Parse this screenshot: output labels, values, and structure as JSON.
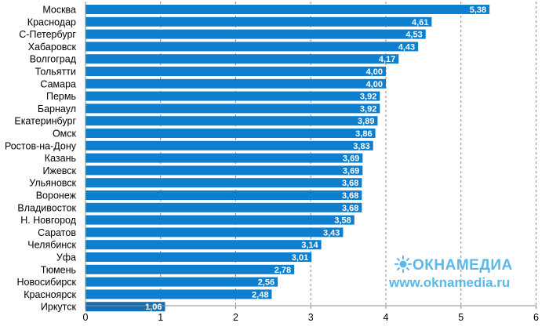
{
  "chart_data": {
    "type": "bar",
    "orientation": "horizontal",
    "categories": [
      "Москва",
      "Краснодар",
      "С-Петербург",
      "Хабаровск",
      "Волгоград",
      "Тольятти",
      "Самара",
      "Пермь",
      "Барнаул",
      "Екатеринбург",
      "Омск",
      "Ростов-на-Дону",
      "Казань",
      "Ижевск",
      "Ульяновск",
      "Воронеж",
      "Владивосток",
      "Н. Новгород",
      "Саратов",
      "Челябинск",
      "Уфа",
      "Тюмень",
      "Новосибирск",
      "Красноярск",
      "Иркутск"
    ],
    "values": [
      5.38,
      4.61,
      4.53,
      4.43,
      4.17,
      4.0,
      4.0,
      3.92,
      3.92,
      3.89,
      3.86,
      3.83,
      3.69,
      3.69,
      3.68,
      3.68,
      3.68,
      3.58,
      3.43,
      3.14,
      3.01,
      2.78,
      2.56,
      2.48,
      1.06
    ],
    "value_labels": [
      "5,38",
      "4,61",
      "4,53",
      "4,43",
      "4,17",
      "4,00",
      "4,00",
      "3,92",
      "3,92",
      "3,89",
      "3,86",
      "3,83",
      "3,69",
      "3,69",
      "3,68",
      "3,68",
      "3,68",
      "3,58",
      "3,43",
      "3,14",
      "3,01",
      "2,78",
      "2,56",
      "2,48",
      "1,06"
    ],
    "xlim": [
      0,
      6
    ],
    "xticks": [
      "0",
      "1",
      "2",
      "3",
      "4",
      "5",
      "6"
    ],
    "grid": "vertical dashed",
    "colors": {
      "bar": "#0d7fce",
      "bar_last": "#1170b8",
      "grid": "#8c8c8c",
      "value_text": "#ffffff"
    }
  },
  "watermark": {
    "brand": "ОКНАМЕДИА",
    "url": "www.oknamedia.ru",
    "color": "#5bb8ea",
    "icon": "sun-icon"
  }
}
